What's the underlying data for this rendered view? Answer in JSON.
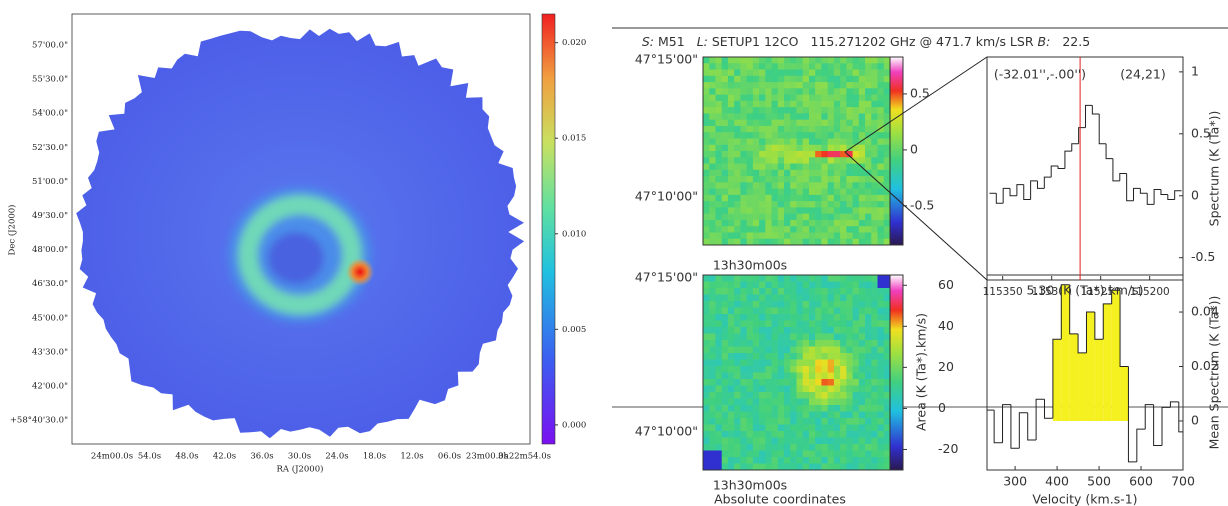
{
  "left_map": {
    "ylabel": "Dec (J2000)",
    "xlabel": "RA (J2000)",
    "yticks": [
      "57'00.0\"",
      "55'30.0\"",
      "54'00.0\"",
      "52'30.0\"",
      "51'00.0\"",
      "49'30.0\"",
      "48'00.0\"",
      "46'30.0\"",
      "45'00.0\"",
      "43'30.0\"",
      "42'00.0\"",
      "+58°40'30.0\""
    ],
    "xticks": [
      "24m00.0s",
      "54.0s",
      "48.0s",
      "42.0s",
      "36.0s",
      "30.0s",
      "24.0s",
      "18.0s",
      "12.0s",
      "06.0s",
      "23m00.0s",
      "3h22m54.0s"
    ],
    "colorbar": {
      "clim": [
        -0.001,
        0.0215
      ],
      "ticks": [
        {
          "value": 0.02,
          "label": "0.020"
        },
        {
          "value": 0.015,
          "label": "0.015"
        },
        {
          "value": 0.01,
          "label": "0.010"
        },
        {
          "value": 0.005,
          "label": "0.005"
        },
        {
          "value": 0,
          "label": "0.000"
        }
      ]
    }
  },
  "header": {
    "source_key": "S:",
    "source": "M51",
    "line_key": "L:",
    "line": "SETUP1 12CO",
    "frequency": "115.271202 GHz @ 471.7 km/s LSR",
    "beam_key": "B:",
    "beam": "22.5"
  },
  "channel_map": {
    "yticks": [
      "47°15'00\"",
      "47°10'00\""
    ],
    "xtick": "13h30m00s",
    "colorbar": {
      "clim": [
        -0.85,
        0.83
      ],
      "ticks": [
        0.5,
        0,
        -0.5
      ]
    }
  },
  "area_map": {
    "yticks": [
      "47°15'00\"",
      "47°10'00\""
    ],
    "xtick": "13h30m00s",
    "xlabel": "Absolute coordinates",
    "colorbar_label": "Area (K (Ta*).km/s)",
    "colorbar": {
      "clim": [
        -30,
        65
      ],
      "ticks": [
        60,
        40,
        20,
        0,
        -20
      ]
    }
  },
  "spectrum": {
    "offset": "(-32.01'',-.00'')",
    "pixel": "(24,21)",
    "ylabel": "Spectrum (K (Ta*))",
    "xlim": [
      115366,
      115166
    ],
    "ylim": [
      -0.68,
      1.12
    ],
    "xticks": [
      115350,
      115300,
      115250,
      115200
    ],
    "yticks": [
      1,
      0.5,
      0,
      -0.5
    ],
    "marker": 115271,
    "marker_color": "#e02020",
    "x": [
      115360,
      115353,
      115346,
      115339,
      115332,
      115325,
      115318,
      115311,
      115304,
      115297,
      115290,
      115283,
      115276,
      115269,
      115262,
      115255,
      115248,
      115241,
      115234,
      115227,
      115220,
      115213,
      115206,
      115199,
      115192,
      115185,
      115178,
      115171
    ],
    "values": [
      0.02,
      -0.06,
      0.06,
      0.0,
      0.09,
      -0.03,
      0.12,
      0.06,
      0.15,
      0.24,
      0.22,
      0.36,
      0.42,
      0.55,
      0.73,
      0.66,
      0.42,
      0.3,
      0.12,
      0.18,
      -0.04,
      0.06,
      0.02,
      -0.07,
      0.05,
      0.01,
      -0.03,
      0.04
    ]
  },
  "mean_spectrum": {
    "area": "5.30 (K (Ta*).km/s)",
    "ylabel": "Mean Spectrum (K (Ta*))",
    "xlabel": "Velocity (km.s-1)",
    "xlim": [
      233,
      700
    ],
    "ylim": [
      -0.018,
      0.0536
    ],
    "xticks": [
      300,
      400,
      500,
      600,
      700
    ],
    "yticks": [
      0.04,
      0.02,
      0
    ],
    "fill_range": [
      390,
      570
    ],
    "fill_color": "#f5f020",
    "x": [
      240,
      260,
      280,
      300,
      320,
      340,
      360,
      380,
      400,
      420,
      440,
      460,
      480,
      500,
      520,
      540,
      560,
      580,
      600,
      620,
      640,
      660,
      680,
      700
    ],
    "values": [
      0.004,
      -0.008,
      0.006,
      -0.01,
      0.003,
      -0.007,
      0.008,
      0.001,
      0.03,
      0.05,
      0.032,
      0.025,
      0.04,
      0.03,
      0.043,
      0.048,
      0.02,
      -0.015,
      -0.003,
      0.006,
      -0.009,
      0.005,
      0.007,
      -0.004
    ]
  }
}
